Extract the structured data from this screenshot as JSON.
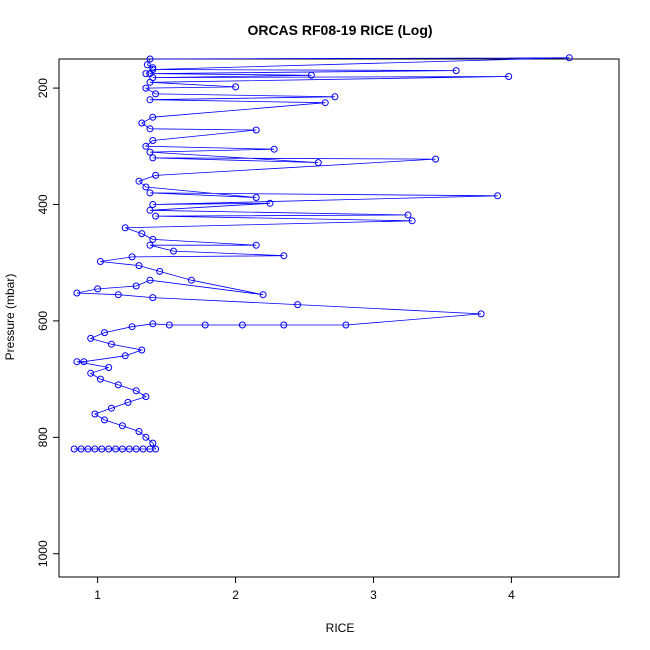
{
  "chart_data": {
    "type": "line",
    "title": "ORCAS RF08-19 RICE (Log)",
    "xlabel": "RICE",
    "ylabel": "Pressure (mbar)",
    "xlim": [
      0.72,
      4.78
    ],
    "ylim": [
      1040,
      150
    ],
    "y_axis_reversed": true,
    "x_ticks": [
      1,
      2,
      3,
      4
    ],
    "y_ticks": [
      200,
      400,
      600,
      800,
      1000
    ],
    "grid": false,
    "legend": "none",
    "marker": "open-circle",
    "series": [
      {
        "color": "#0000ff",
        "points": [
          [
            0.83,
            820
          ],
          [
            0.88,
            820
          ],
          [
            0.93,
            820
          ],
          [
            0.98,
            820
          ],
          [
            1.03,
            820
          ],
          [
            1.08,
            820
          ],
          [
            1.13,
            820
          ],
          [
            1.18,
            820
          ],
          [
            1.23,
            820
          ],
          [
            1.28,
            820
          ],
          [
            1.33,
            820
          ],
          [
            1.38,
            820
          ],
          [
            1.42,
            820
          ],
          [
            1.4,
            810
          ],
          [
            1.35,
            800
          ],
          [
            1.3,
            790
          ],
          [
            1.18,
            780
          ],
          [
            1.05,
            770
          ],
          [
            0.98,
            760
          ],
          [
            1.1,
            750
          ],
          [
            1.22,
            740
          ],
          [
            1.35,
            730
          ],
          [
            1.28,
            720
          ],
          [
            1.15,
            710
          ],
          [
            1.02,
            700
          ],
          [
            0.95,
            690
          ],
          [
            1.08,
            680
          ],
          [
            0.85,
            670
          ],
          [
            0.9,
            670
          ],
          [
            1.2,
            660
          ],
          [
            1.32,
            650
          ],
          [
            1.1,
            640
          ],
          [
            0.95,
            630
          ],
          [
            1.05,
            620
          ],
          [
            1.25,
            610
          ],
          [
            1.4,
            605
          ],
          [
            1.52,
            607
          ],
          [
            1.78,
            607
          ],
          [
            2.05,
            607
          ],
          [
            2.35,
            607
          ],
          [
            2.8,
            607
          ],
          [
            3.78,
            588
          ],
          [
            2.45,
            572
          ],
          [
            1.4,
            560
          ],
          [
            1.15,
            555
          ],
          [
            0.85,
            552
          ],
          [
            1.0,
            545
          ],
          [
            1.28,
            540
          ],
          [
            1.38,
            530
          ],
          [
            2.2,
            555
          ],
          [
            1.68,
            530
          ],
          [
            1.45,
            515
          ],
          [
            1.3,
            505
          ],
          [
            1.02,
            498
          ],
          [
            1.25,
            490
          ],
          [
            2.35,
            488
          ],
          [
            1.55,
            480
          ],
          [
            1.38,
            470
          ],
          [
            2.15,
            470
          ],
          [
            1.4,
            460
          ],
          [
            1.32,
            450
          ],
          [
            1.2,
            440
          ],
          [
            3.28,
            428
          ],
          [
            1.42,
            420
          ],
          [
            3.25,
            418
          ],
          [
            1.38,
            410
          ],
          [
            2.25,
            398
          ],
          [
            1.4,
            400
          ],
          [
            3.9,
            385
          ],
          [
            1.38,
            380
          ],
          [
            2.15,
            388
          ],
          [
            1.35,
            370
          ],
          [
            1.3,
            360
          ],
          [
            1.42,
            350
          ],
          [
            3.45,
            322
          ],
          [
            1.4,
            320
          ],
          [
            2.6,
            328
          ],
          [
            1.38,
            310
          ],
          [
            2.28,
            305
          ],
          [
            1.35,
            300
          ],
          [
            1.4,
            290
          ],
          [
            2.15,
            272
          ],
          [
            1.38,
            270
          ],
          [
            1.32,
            260
          ],
          [
            1.4,
            250
          ],
          [
            2.65,
            225
          ],
          [
            1.38,
            220
          ],
          [
            2.72,
            215
          ],
          [
            1.42,
            210
          ],
          [
            1.35,
            200
          ],
          [
            2.0,
            198
          ],
          [
            1.38,
            190
          ],
          [
            3.98,
            180
          ],
          [
            1.4,
            182
          ],
          [
            2.55,
            178
          ],
          [
            1.38,
            175
          ],
          [
            3.6,
            170
          ],
          [
            1.4,
            168
          ],
          [
            4.42,
            148
          ],
          [
            1.38,
            150
          ],
          [
            1.36,
            160
          ],
          [
            1.4,
            165
          ],
          [
            1.35,
            175
          ]
        ]
      }
    ]
  }
}
